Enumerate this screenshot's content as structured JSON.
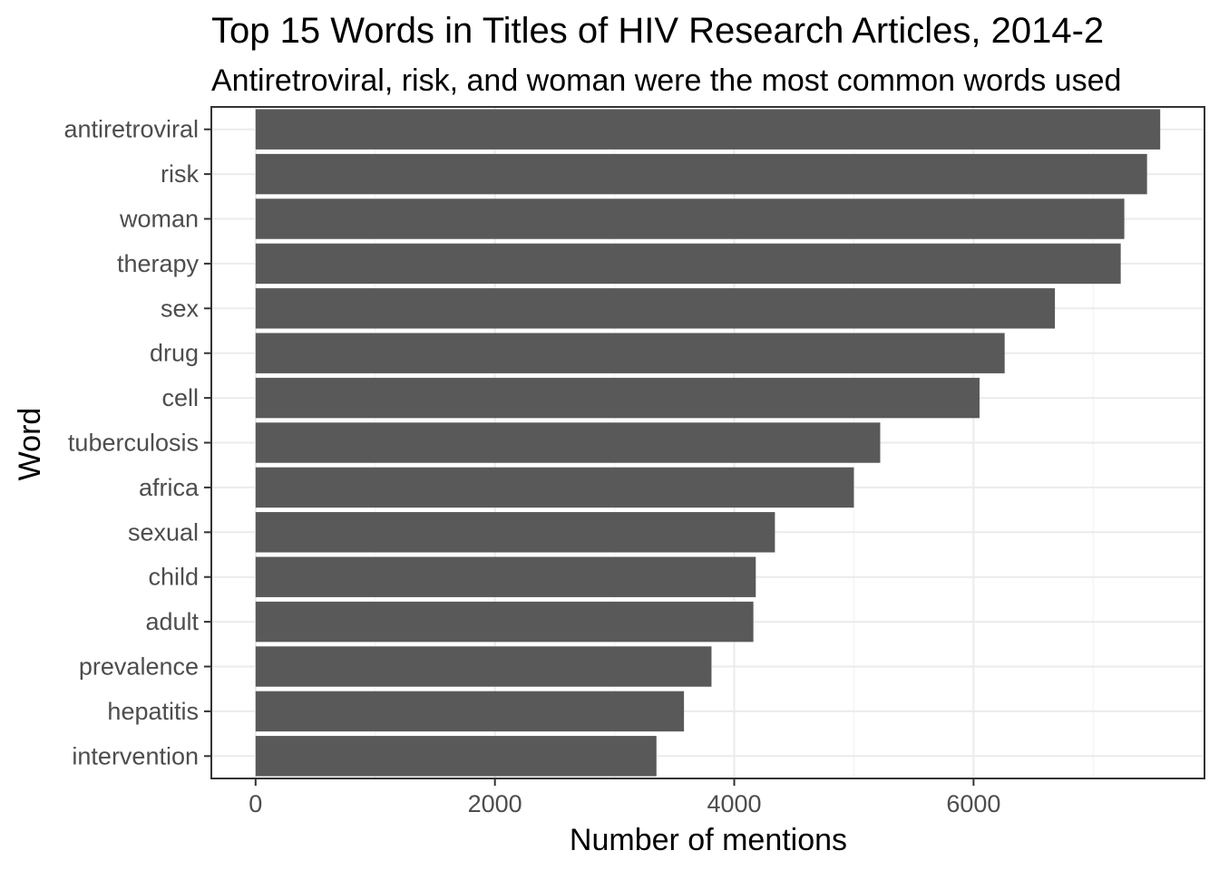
{
  "chart_data": {
    "type": "bar",
    "orientation": "horizontal",
    "title": "Top 15 Words in Titles of HIV Research Articles, 2014-2",
    "subtitle": "Antiretroviral, risk, and woman were the most common words used",
    "xlabel": "Number of mentions",
    "ylabel": "Word",
    "categories": [
      "antiretroviral",
      "risk",
      "woman",
      "therapy",
      "sex",
      "drug",
      "cell",
      "tuberculosis",
      "africa",
      "sexual",
      "child",
      "adult",
      "prevalence",
      "hepatitis",
      "intervention"
    ],
    "values": [
      7560,
      7450,
      7260,
      7230,
      6680,
      6260,
      6050,
      5220,
      5000,
      4340,
      4180,
      4160,
      3810,
      3580,
      3350
    ],
    "xlim": [
      -370,
      7930
    ],
    "xticks": [
      0,
      2000,
      4000,
      6000
    ],
    "xtick_labels": [
      "0",
      "2000",
      "4000",
      "6000"
    ],
    "grid": true,
    "legend": "none",
    "bar_color": "#595959"
  }
}
